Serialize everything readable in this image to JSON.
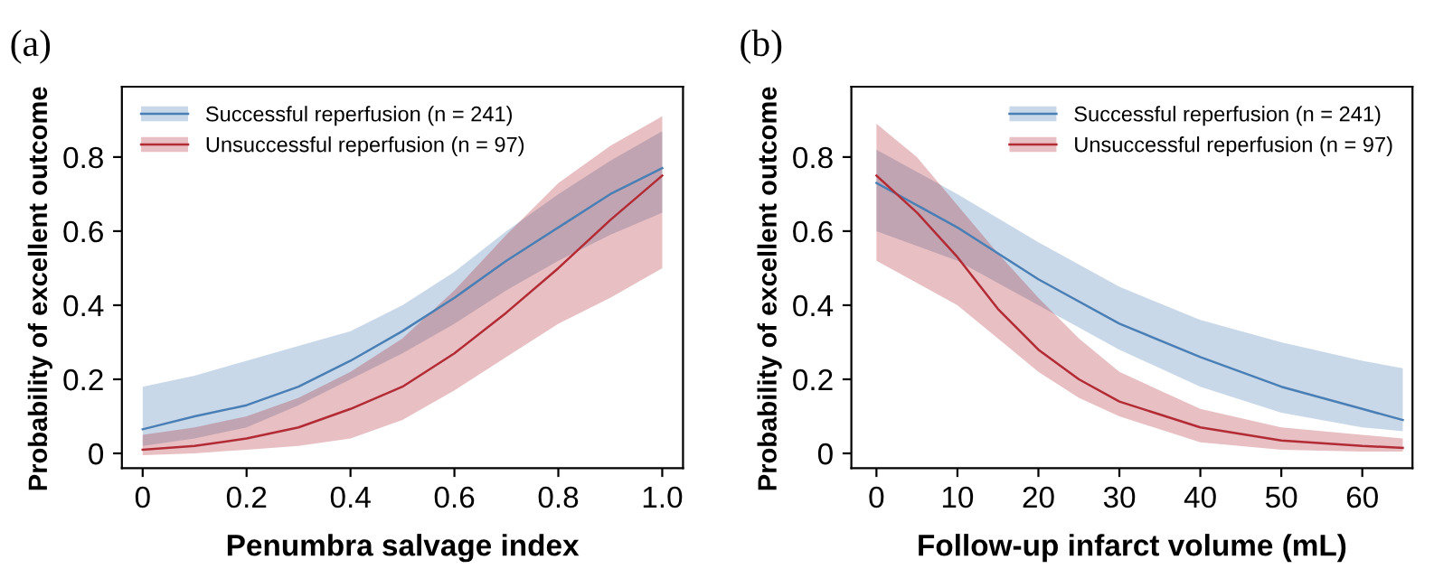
{
  "chart_data": [
    {
      "type": "line",
      "title": "(a)",
      "xlabel": "Penumbra salvage index",
      "ylabel": "Probability of excellent outcome",
      "xlim": [
        -0.04,
        1.04
      ],
      "ylim": [
        -0.04,
        0.99
      ],
      "xticks": [
        0,
        0.2,
        0.4,
        0.6,
        0.8,
        {
          "value": 1.0,
          "label": "1.0"
        }
      ],
      "yticks": [
        0,
        0.2,
        0.4,
        0.6,
        0.8
      ],
      "grid": false,
      "legend": "top left",
      "marker": "none",
      "line_style": "solid",
      "series": [
        {
          "name": "Successful reperfusion (n = 241)",
          "color": "#4a7fb5",
          "x": [
            0,
            0.1,
            0.2,
            0.3,
            0.4,
            0.5,
            0.6,
            0.7,
            0.8,
            0.9,
            1.0
          ],
          "values": [
            0.065,
            0.1,
            0.13,
            0.18,
            0.25,
            0.33,
            0.42,
            0.52,
            0.61,
            0.7,
            0.77
          ],
          "lower": [
            0.02,
            0.04,
            0.07,
            0.13,
            0.2,
            0.27,
            0.35,
            0.44,
            0.52,
            0.59,
            0.65
          ],
          "upper": [
            0.18,
            0.21,
            0.25,
            0.29,
            0.33,
            0.4,
            0.49,
            0.6,
            0.7,
            0.79,
            0.87
          ]
        },
        {
          "name": "Unsuccessful reperfusion (n = 97)",
          "color": "#b22b35",
          "x": [
            0,
            0.1,
            0.2,
            0.3,
            0.4,
            0.5,
            0.6,
            0.7,
            0.8,
            0.9,
            1.0
          ],
          "values": [
            0.01,
            0.02,
            0.04,
            0.07,
            0.12,
            0.18,
            0.27,
            0.38,
            0.5,
            0.63,
            0.75
          ],
          "lower": [
            -0.005,
            0.0,
            0.01,
            0.02,
            0.04,
            0.09,
            0.17,
            0.26,
            0.35,
            0.42,
            0.5
          ],
          "upper": [
            0.05,
            0.07,
            0.1,
            0.15,
            0.22,
            0.31,
            0.44,
            0.59,
            0.73,
            0.83,
            0.91
          ]
        }
      ]
    },
    {
      "type": "line",
      "title": "(b)",
      "xlabel": "Follow-up infarct volume (mL)",
      "ylabel": "Probability of excellent outcome",
      "xlim": [
        -3.1,
        66.2
      ],
      "ylim": [
        -0.04,
        0.99
      ],
      "xticks": [
        0,
        10,
        20,
        30,
        40,
        50,
        60
      ],
      "yticks": [
        0,
        0.2,
        0.4,
        0.6,
        0.8
      ],
      "grid": false,
      "legend": "top right",
      "marker": "none",
      "line_style": "solid",
      "series": [
        {
          "name": "Successful reperfusion (n = 241)",
          "color": "#4a7fb5",
          "x": [
            0,
            10,
            20,
            30,
            40,
            50,
            60,
            65
          ],
          "values": [
            0.73,
            0.61,
            0.47,
            0.35,
            0.26,
            0.18,
            0.12,
            0.09
          ],
          "lower": [
            0.6,
            0.52,
            0.4,
            0.28,
            0.18,
            0.11,
            0.07,
            0.06
          ],
          "upper": [
            0.82,
            0.7,
            0.57,
            0.45,
            0.36,
            0.3,
            0.25,
            0.23
          ]
        },
        {
          "name": "Unsuccessful reperfusion (n = 97)",
          "color": "#b22b35",
          "x": [
            0,
            5,
            10,
            15,
            20,
            25,
            30,
            40,
            50,
            60,
            65
          ],
          "values": [
            0.75,
            0.65,
            0.53,
            0.39,
            0.28,
            0.2,
            0.14,
            0.07,
            0.035,
            0.02,
            0.015
          ],
          "lower": [
            0.52,
            0.46,
            0.4,
            0.31,
            0.22,
            0.15,
            0.1,
            0.03,
            0.01,
            0.005,
            0.005
          ],
          "upper": [
            0.89,
            0.8,
            0.67,
            0.54,
            0.42,
            0.31,
            0.22,
            0.12,
            0.07,
            0.05,
            0.04
          ]
        }
      ]
    }
  ]
}
